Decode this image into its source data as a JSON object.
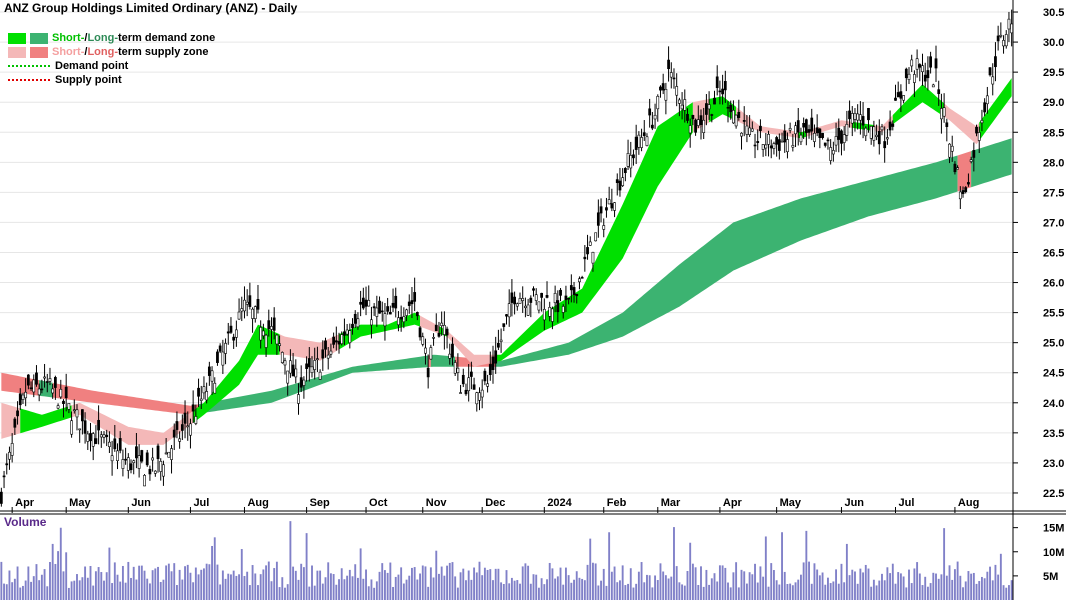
{
  "title": "ANZ Group Holdings Limited Ordinary (ANZ) - Daily",
  "legend": [
    {
      "label_a": "Short-",
      "label_b": " / ",
      "label_c": "Long-",
      "label_d": "term demand zone",
      "type": "zone",
      "colors": [
        "#00e000",
        "#3cb371"
      ]
    },
    {
      "label_a": "Short-",
      "label_b": " / ",
      "label_c": "Long-",
      "label_d": "term supply zone",
      "type": "zone",
      "colors": [
        "#f4b8b8",
        "#f08080"
      ]
    },
    {
      "label": "Demand point",
      "type": "dots",
      "color": "#00c000"
    },
    {
      "label": "Supply point",
      "type": "dots",
      "color": "#e00000"
    }
  ],
  "volume_label": "Volume",
  "chart_data": {
    "type": "candlestick",
    "price_axis": {
      "min": 22.2,
      "max": 30.7,
      "ticks": [
        "22.5",
        "23.0",
        "23.5",
        "24.0",
        "24.5",
        "25.0",
        "25.5",
        "26.0",
        "26.5",
        "27.0",
        "27.5",
        "28.0",
        "28.5",
        "29.0",
        "29.5",
        "30.0",
        "30.5"
      ]
    },
    "volume_axis": {
      "min": 0,
      "max": 17000000,
      "ticks": [
        {
          "label": "5M",
          "value": 5000000
        },
        {
          "label": "10M",
          "value": 10000000
        },
        {
          "label": "15M",
          "value": 15000000
        }
      ]
    },
    "x_labels": [
      "Apr",
      "May",
      "Jun",
      "Jul",
      "Aug",
      "Sep",
      "Oct",
      "Nov",
      "Dec",
      "2024",
      "Feb",
      "Mar",
      "Apr",
      "May",
      "Jun",
      "Jul",
      "Aug"
    ],
    "approx_close_path": [
      [
        "2023-03-28",
        22.5
      ],
      [
        "2023-04-10",
        24.2
      ],
      [
        "2023-04-20",
        24.3
      ],
      [
        "2023-05-10",
        23.6
      ],
      [
        "2023-06-01",
        23.0
      ],
      [
        "2023-06-15",
        22.9
      ],
      [
        "2023-07-03",
        23.7
      ],
      [
        "2023-07-14",
        24.4
      ],
      [
        "2023-07-31",
        25.6
      ],
      [
        "2023-08-14",
        25.2
      ],
      [
        "2023-08-28",
        24.3
      ],
      [
        "2023-09-15",
        24.9
      ],
      [
        "2023-09-29",
        25.6
      ],
      [
        "2023-10-13",
        25.4
      ],
      [
        "2023-10-27",
        25.7
      ],
      [
        "2023-11-03",
        24.6
      ],
      [
        "2023-11-10",
        25.4
      ],
      [
        "2023-11-20",
        24.3
      ],
      [
        "2023-12-04",
        24.3
      ],
      [
        "2023-12-18",
        25.8
      ],
      [
        "2024-01-02",
        25.7
      ],
      [
        "2024-01-15",
        25.6
      ],
      [
        "2024-01-31",
        27.0
      ],
      [
        "2024-02-14",
        28.0
      ],
      [
        "2024-02-28",
        28.8
      ],
      [
        "2024-03-06",
        29.5
      ],
      [
        "2024-03-20",
        28.6
      ],
      [
        "2024-04-03",
        29.2
      ],
      [
        "2024-04-17",
        28.4
      ],
      [
        "2024-05-01",
        28.3
      ],
      [
        "2024-05-15",
        28.5
      ],
      [
        "2024-05-29",
        28.2
      ],
      [
        "2024-06-12",
        28.8
      ],
      [
        "2024-06-26",
        28.4
      ],
      [
        "2024-07-10",
        29.6
      ],
      [
        "2024-07-22",
        29.4
      ],
      [
        "2024-08-05",
        27.4
      ],
      [
        "2024-08-14",
        28.8
      ],
      [
        "2024-08-23",
        29.9
      ],
      [
        "2024-08-30",
        30.4
      ]
    ],
    "short_term_zone_path": [
      [
        "2023-03-28",
        24.0,
        23.4
      ],
      [
        "2023-04-18",
        23.8,
        23.6
      ],
      [
        "2023-05-08",
        24.0,
        23.8
      ],
      [
        "2023-06-01",
        23.6,
        23.3
      ],
      [
        "2023-06-20",
        23.5,
        23.3
      ],
      [
        "2023-07-10",
        24.0,
        23.8
      ],
      [
        "2023-07-28",
        24.7,
        24.3
      ],
      [
        "2023-08-07",
        25.3,
        24.8
      ],
      [
        "2023-08-21",
        25.1,
        24.8
      ],
      [
        "2023-09-08",
        25.0,
        24.7
      ],
      [
        "2023-09-29",
        25.3,
        25.1
      ],
      [
        "2023-10-13",
        25.3,
        25.2
      ],
      [
        "2023-10-27",
        25.5,
        25.3
      ],
      [
        "2023-11-13",
        25.2,
        25.1
      ],
      [
        "2023-11-27",
        24.8,
        24.6
      ],
      [
        "2023-12-11",
        24.8,
        24.7
      ],
      [
        "2024-01-02",
        25.5,
        25.2
      ],
      [
        "2024-01-22",
        25.9,
        25.5
      ],
      [
        "2024-02-12",
        27.3,
        26.4
      ],
      [
        "2024-03-01",
        28.6,
        27.6
      ],
      [
        "2024-03-18",
        29.0,
        28.5
      ],
      [
        "2024-04-03",
        29.1,
        28.8
      ],
      [
        "2024-04-22",
        28.6,
        28.5
      ],
      [
        "2024-05-13",
        28.5,
        28.4
      ],
      [
        "2024-06-03",
        28.7,
        28.6
      ],
      [
        "2024-06-24",
        28.6,
        28.5
      ],
      [
        "2024-07-15",
        29.3,
        29.0
      ],
      [
        "2024-07-29",
        28.9,
        28.7
      ],
      [
        "2024-08-12",
        28.6,
        28.3
      ],
      [
        "2024-08-30",
        29.4,
        29.1
      ]
    ],
    "long_term_zone_path": [
      [
        "2023-03-28",
        24.5,
        24.2
      ],
      [
        "2023-05-15",
        24.2,
        24.0
      ],
      [
        "2023-07-03",
        23.95,
        23.8
      ],
      [
        "2023-08-14",
        24.2,
        24.0
      ],
      [
        "2023-09-25",
        24.6,
        24.5
      ],
      [
        "2023-11-06",
        24.8,
        24.6
      ],
      [
        "2023-12-11",
        24.7,
        24.6
      ],
      [
        "2024-01-15",
        25.0,
        24.8
      ],
      [
        "2024-02-12",
        25.5,
        25.1
      ],
      [
        "2024-03-11",
        26.3,
        25.6
      ],
      [
        "2024-04-08",
        27.0,
        26.2
      ],
      [
        "2024-05-13",
        27.4,
        26.7
      ],
      [
        "2024-06-17",
        27.7,
        27.1
      ],
      [
        "2024-07-22",
        28.0,
        27.4
      ],
      [
        "2024-08-30",
        28.4,
        27.8
      ]
    ]
  }
}
